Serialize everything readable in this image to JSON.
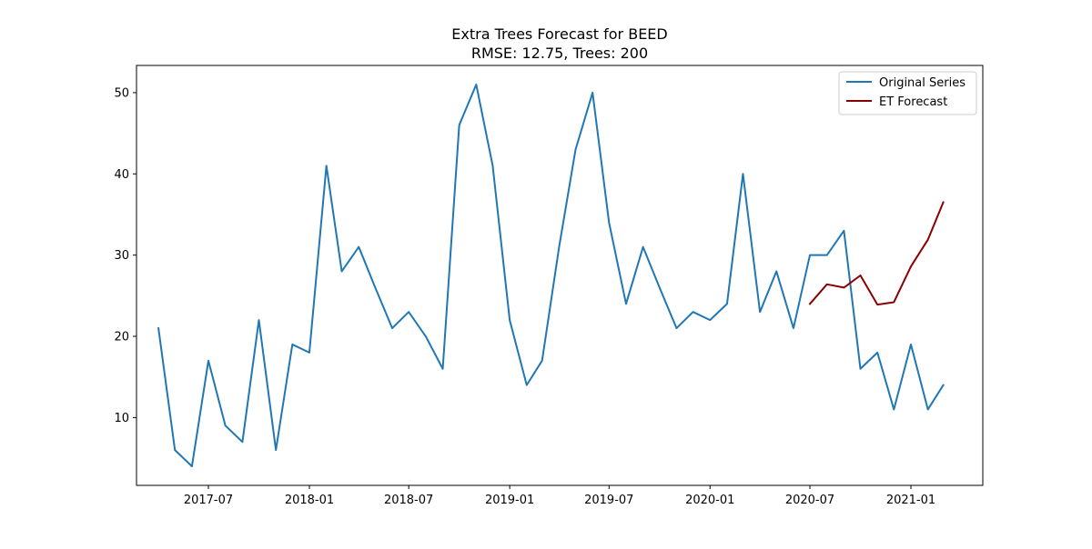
{
  "chart_data": {
    "type": "line",
    "title": "Extra Trees Forecast for BEED",
    "subtitle": "RMSE: 12.75, Trees: 200",
    "xlabel": "",
    "ylabel": "",
    "x_ticks": [
      "2017-07",
      "2018-01",
      "2018-07",
      "2019-01",
      "2019-07",
      "2020-01",
      "2020-07",
      "2021-01"
    ],
    "y_ticks": [
      10,
      20,
      30,
      40,
      50
    ],
    "xlim": [
      "2017-02-20",
      "2021-05-12"
    ],
    "ylim": [
      1.65,
      53.35
    ],
    "grid": false,
    "legend_position": "top-right",
    "series": [
      {
        "name": "Original Series",
        "color": "#1f77b4",
        "x": [
          "2017-04",
          "2017-05",
          "2017-06",
          "2017-07",
          "2017-08",
          "2017-09",
          "2017-10",
          "2017-11",
          "2017-12",
          "2018-01",
          "2018-02",
          "2018-03",
          "2018-04",
          "2018-05",
          "2018-06",
          "2018-07",
          "2018-08",
          "2018-09",
          "2018-10",
          "2018-11",
          "2018-12",
          "2019-01",
          "2019-02",
          "2019-03",
          "2019-04",
          "2019-05",
          "2019-06",
          "2019-07",
          "2019-08",
          "2019-09",
          "2019-10",
          "2019-11",
          "2019-12",
          "2020-01",
          "2020-02",
          "2020-03",
          "2020-04",
          "2020-05",
          "2020-06",
          "2020-07",
          "2020-08",
          "2020-09",
          "2020-10",
          "2020-11",
          "2020-12",
          "2021-01",
          "2021-02",
          "2021-03"
        ],
        "values": [
          21,
          6,
          4,
          17,
          9,
          7,
          22,
          6,
          19,
          18,
          41,
          28,
          31,
          26,
          21,
          23,
          20,
          16,
          46,
          51,
          41,
          22,
          14,
          17,
          31,
          43,
          50,
          34,
          24,
          31,
          26,
          21,
          23,
          22,
          24,
          40,
          23,
          28,
          21,
          30,
          30,
          33,
          16,
          18,
          11,
          19,
          11,
          14
        ]
      },
      {
        "name": "ET Forecast",
        "color": "#8b0000",
        "x": [
          "2020-07",
          "2020-08",
          "2020-09",
          "2020-10",
          "2020-11",
          "2020-12",
          "2021-01",
          "2021-02",
          "2021-03"
        ],
        "values": [
          24.0,
          26.4,
          26.0,
          27.5,
          23.9,
          24.2,
          28.6,
          31.9,
          36.5
        ]
      }
    ]
  }
}
